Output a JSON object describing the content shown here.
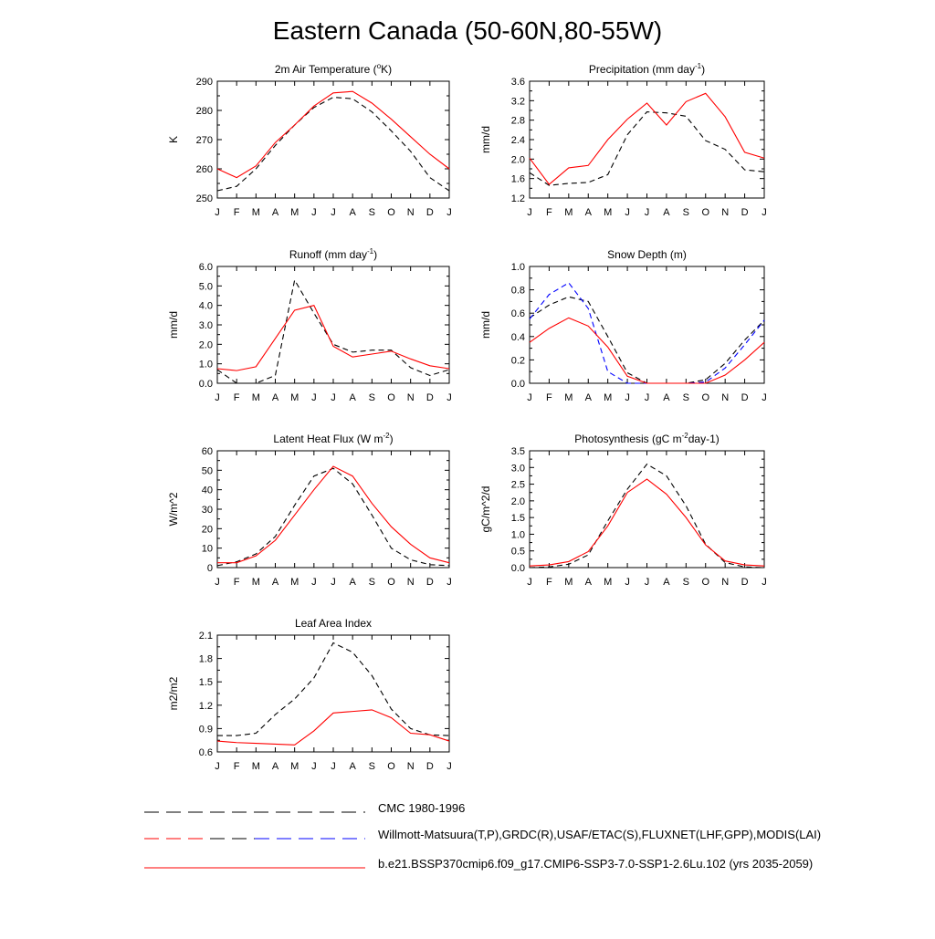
{
  "figure": {
    "title": "Eastern Canada (50-60N,80-55W)"
  },
  "months": [
    "J",
    "F",
    "M",
    "A",
    "M",
    "J",
    "J",
    "A",
    "S",
    "O",
    "N",
    "D",
    "J"
  ],
  "colors": {
    "model": "#ff0000",
    "cmc": "#000000",
    "obs": "#0000ff"
  },
  "legend": [
    {
      "label": "CMC 1980-1996",
      "style": "dash-black"
    },
    {
      "label": "Willmott-Matsuura(T,P),GRDC(R),USAF/ETAC(S),FLUXNET(LHF,GPP),MODIS(LAI)",
      "style": "dash-red-blue"
    },
    {
      "label": "b.e21.BSSP370cmip6.f09_g17.CMIP6-SSP3-7.0-SSP1-2.6Lu.102 (yrs 2035-2059)",
      "style": "solid-red"
    }
  ],
  "chart_data": [
    {
      "type": "line",
      "title": "2m Air Temperature (°K)",
      "ylabel": "K",
      "ylim": [
        250,
        290
      ],
      "yticks": [
        "250",
        "260",
        "270",
        "280",
        "290"
      ],
      "series": [
        {
          "style": "dash-black",
          "values": [
            252.5,
            254,
            260,
            268,
            275,
            281,
            284.5,
            284,
            279.5,
            273,
            266,
            257,
            252.5
          ]
        },
        {
          "style": "solid-red",
          "values": [
            260,
            257,
            261,
            269,
            275,
            281.5,
            286,
            286.5,
            282.5,
            277,
            271,
            265,
            260
          ]
        }
      ]
    },
    {
      "type": "line",
      "title": "Precipitation (mm day-1)",
      "ylabel": "mm/d",
      "ylim": [
        1.2,
        3.6
      ],
      "yticks": [
        "1.2",
        "1.6",
        "2.0",
        "2.4",
        "2.8",
        "3.2",
        "3.6"
      ],
      "series": [
        {
          "style": "dash-black",
          "values": [
            1.72,
            1.46,
            1.5,
            1.52,
            1.68,
            2.5,
            2.97,
            2.95,
            2.88,
            2.38,
            2.2,
            1.78,
            1.74
          ]
        },
        {
          "style": "solid-red",
          "values": [
            2.02,
            1.48,
            1.82,
            1.87,
            2.4,
            2.82,
            3.15,
            2.7,
            3.18,
            3.35,
            2.87,
            2.14,
            2.02
          ]
        }
      ]
    },
    {
      "type": "line",
      "title": "Runoff (mm day-1)",
      "ylabel": "mm/d",
      "ylim": [
        0,
        6
      ],
      "yticks": [
        "0.0",
        "1.0",
        "2.0",
        "3.0",
        "4.0",
        "5.0",
        "6.0"
      ],
      "series": [
        {
          "style": "dash-black",
          "values": [
            0.7,
            0.0,
            0.0,
            0.4,
            5.3,
            3.6,
            2.0,
            1.6,
            1.7,
            1.7,
            0.8,
            0.4,
            0.7
          ]
        },
        {
          "style": "solid-red",
          "values": [
            0.75,
            0.65,
            0.85,
            2.3,
            3.75,
            4.0,
            1.9,
            1.35,
            1.5,
            1.65,
            1.25,
            0.9,
            0.75
          ]
        }
      ]
    },
    {
      "type": "line",
      "title": "Snow Depth (m)",
      "ylabel": "mm/d",
      "ylim": [
        0,
        1
      ],
      "yticks": [
        "0.0",
        "0.2",
        "0.4",
        "0.6",
        "0.8",
        "1.0"
      ],
      "series": [
        {
          "style": "dash-black",
          "values": [
            0.56,
            0.67,
            0.74,
            0.7,
            0.4,
            0.09,
            0.0,
            0.0,
            0.0,
            0.03,
            0.17,
            0.37,
            0.54
          ]
        },
        {
          "style": "dash-blue",
          "values": [
            0.55,
            0.76,
            0.86,
            0.64,
            0.1,
            0.0,
            0.0,
            0.0,
            0.0,
            0.01,
            0.13,
            0.33,
            0.54
          ]
        },
        {
          "style": "solid-red",
          "values": [
            0.35,
            0.47,
            0.56,
            0.49,
            0.31,
            0.06,
            0.0,
            0.0,
            0.0,
            0.0,
            0.07,
            0.2,
            0.35
          ]
        }
      ]
    },
    {
      "type": "line",
      "title": "Latent Heat Flux (W m-2)",
      "ylabel": "W/m^2",
      "ylim": [
        0,
        60
      ],
      "yticks": [
        "0",
        "10",
        "20",
        "30",
        "40",
        "50",
        "60"
      ],
      "series": [
        {
          "style": "dash-black",
          "values": [
            1,
            3,
            7,
            16,
            32,
            47,
            51,
            43,
            27,
            10,
            4,
            1.5,
            1
          ]
        },
        {
          "style": "solid-red",
          "values": [
            2.5,
            2.5,
            6,
            14,
            27,
            40,
            52,
            47,
            33,
            21,
            12,
            5,
            2.5
          ]
        }
      ]
    },
    {
      "type": "line",
      "title": "Photosynthesis (gC m-2day-1)",
      "ylabel": "gC/m^2/d",
      "ylim": [
        0,
        3.5
      ],
      "yticks": [
        "0.0",
        "0.5",
        "1.0",
        "1.5",
        "2.0",
        "2.5",
        "3.0",
        "3.5"
      ],
      "series": [
        {
          "style": "dash-black",
          "values": [
            0.0,
            0.02,
            0.1,
            0.38,
            1.4,
            2.35,
            3.1,
            2.75,
            1.85,
            0.7,
            0.15,
            0.02,
            0.0
          ]
        },
        {
          "style": "solid-red",
          "values": [
            0.05,
            0.08,
            0.18,
            0.48,
            1.25,
            2.25,
            2.65,
            2.2,
            1.5,
            0.68,
            0.2,
            0.08,
            0.05
          ]
        }
      ]
    },
    {
      "type": "line",
      "title": "Leaf Area Index",
      "ylabel": "m2/m2",
      "ylim": [
        0.6,
        2.1
      ],
      "yticks": [
        "0.6",
        "0.9",
        "1.2",
        "1.5",
        "1.8",
        "2.1"
      ],
      "series": [
        {
          "style": "dash-black",
          "values": [
            0.81,
            0.81,
            0.84,
            1.08,
            1.28,
            1.55,
            2.0,
            1.88,
            1.58,
            1.15,
            0.9,
            0.82,
            0.81
          ]
        },
        {
          "style": "solid-red",
          "values": [
            0.74,
            0.72,
            0.71,
            0.7,
            0.69,
            0.87,
            1.1,
            1.12,
            1.14,
            1.04,
            0.84,
            0.82,
            0.74
          ]
        }
      ]
    }
  ]
}
